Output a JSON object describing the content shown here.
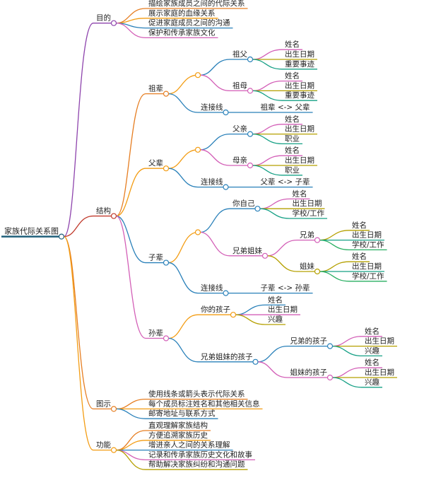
{
  "root": {
    "label": "家族代际关系图",
    "children": [
      {
        "label": "目的",
        "children": [
          {
            "label": "描绘家族成员之间的代际关系"
          },
          {
            "label": "展示家庭的血缘关系"
          },
          {
            "label": "促进家庭成员之间的沟通"
          },
          {
            "label": "保护和传承家族文化"
          }
        ]
      },
      {
        "label": "结构",
        "children": [
          {
            "label": "祖辈",
            "children": [
              {
                "children": [
                  {
                    "label": "祖父",
                    "children": [
                      {
                        "label": "姓名"
                      },
                      {
                        "label": "出生日期"
                      },
                      {
                        "label": "重要事迹"
                      }
                    ]
                  },
                  {
                    "label": "祖母",
                    "children": [
                      {
                        "label": "姓名"
                      },
                      {
                        "label": "出生日期"
                      },
                      {
                        "label": "重要事迹"
                      }
                    ]
                  }
                ]
              },
              {
                "label": "连接线",
                "children": [
                  {
                    "label": "祖辈 <-> 父辈"
                  }
                ]
              }
            ]
          },
          {
            "label": "父辈",
            "children": [
              {
                "children": [
                  {
                    "label": "父亲",
                    "children": [
                      {
                        "label": "姓名"
                      },
                      {
                        "label": "出生日期"
                      },
                      {
                        "label": "职业"
                      }
                    ]
                  },
                  {
                    "label": "母亲",
                    "children": [
                      {
                        "label": "姓名"
                      },
                      {
                        "label": "出生日期"
                      },
                      {
                        "label": "职业"
                      }
                    ]
                  }
                ]
              },
              {
                "label": "连接线",
                "children": [
                  {
                    "label": "父辈 <-> 子辈"
                  }
                ]
              }
            ]
          },
          {
            "label": "子辈",
            "children": [
              {
                "children": [
                  {
                    "label": "你自己",
                    "children": [
                      {
                        "label": "姓名"
                      },
                      {
                        "label": "出生日期"
                      },
                      {
                        "label": "学校/工作"
                      }
                    ]
                  },
                  {
                    "label": "兄弟姐妹",
                    "children": [
                      {
                        "label": "兄弟",
                        "children": [
                          {
                            "label": "姓名"
                          },
                          {
                            "label": "出生日期"
                          },
                          {
                            "label": "学校/工作"
                          }
                        ]
                      },
                      {
                        "label": "姐妹",
                        "children": [
                          {
                            "label": "姓名"
                          },
                          {
                            "label": "出生日期"
                          },
                          {
                            "label": "学校/工作"
                          }
                        ]
                      }
                    ]
                  }
                ]
              },
              {
                "label": "连接线",
                "children": [
                  {
                    "label": "子辈 <-> 孙辈"
                  }
                ]
              }
            ]
          },
          {
            "label": "孙辈",
            "children": [
              {
                "label": "你的孩子",
                "children": [
                  {
                    "label": "姓名"
                  },
                  {
                    "label": "出生日期"
                  },
                  {
                    "label": "兴趣"
                  }
                ]
              },
              {
                "label": "兄弟姐妹的孩子",
                "children": [
                  {
                    "label": "兄弟的孩子",
                    "children": [
                      {
                        "label": "姓名"
                      },
                      {
                        "label": "出生日期"
                      },
                      {
                        "label": "兴趣"
                      }
                    ]
                  },
                  {
                    "label": "姐妹的孩子",
                    "children": [
                      {
                        "label": "姓名"
                      },
                      {
                        "label": "出生日期"
                      },
                      {
                        "label": "兴趣"
                      }
                    ]
                  }
                ]
              }
            ]
          }
        ]
      },
      {
        "label": "图示",
        "children": [
          {
            "label": "使用线条或箭头表示代际关系"
          },
          {
            "label": "每个成员标注姓名和其他相关信息"
          },
          {
            "label": "邮寄地址与联系方式"
          }
        ]
      },
      {
        "label": "功能",
        "children": [
          {
            "label": "直观理解家族结构"
          },
          {
            "label": "方便追溯家族历史"
          },
          {
            "label": "增进亲人之间的关系理解"
          },
          {
            "label": "记录和传承家族历史文化和故事"
          },
          {
            "label": "帮助解决家族纠纷和沟通问题"
          }
        ]
      }
    ]
  }
}
